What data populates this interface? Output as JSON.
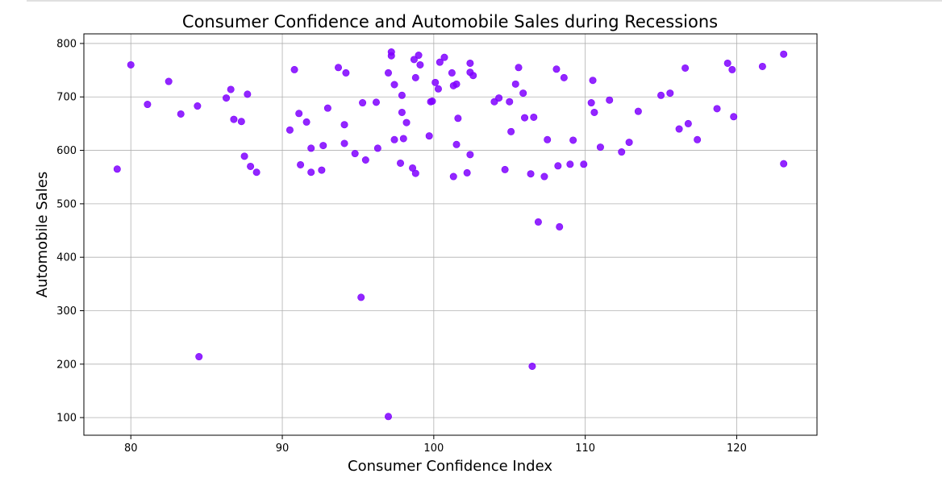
{
  "chart_data": {
    "type": "scatter",
    "title": "Consumer Confidence and Automobile Sales during Recessions",
    "xlabel": "Consumer Confidence Index",
    "ylabel": "Automobile Sales",
    "xlim": [
      76.9,
      125.3
    ],
    "ylim": [
      67,
      818
    ],
    "xticks": [
      80,
      90,
      100,
      110,
      120
    ],
    "yticks": [
      100,
      200,
      300,
      400,
      500,
      600,
      700,
      800
    ],
    "grid": true,
    "marker_color": "#7f00ff",
    "points": [
      [
        79.1,
        565
      ],
      [
        80.0,
        760
      ],
      [
        81.1,
        686
      ],
      [
        82.5,
        729
      ],
      [
        83.3,
        668
      ],
      [
        84.4,
        683
      ],
      [
        84.5,
        214
      ],
      [
        86.3,
        698
      ],
      [
        86.6,
        714
      ],
      [
        86.8,
        658
      ],
      [
        87.3,
        654
      ],
      [
        87.5,
        589
      ],
      [
        87.7,
        705
      ],
      [
        87.9,
        570
      ],
      [
        88.3,
        559
      ],
      [
        90.5,
        638
      ],
      [
        90.8,
        751
      ],
      [
        91.1,
        669
      ],
      [
        91.2,
        573
      ],
      [
        91.6,
        653
      ],
      [
        91.9,
        604
      ],
      [
        91.9,
        559
      ],
      [
        92.6,
        563
      ],
      [
        92.7,
        609
      ],
      [
        93.0,
        679
      ],
      [
        93.7,
        755
      ],
      [
        94.1,
        648
      ],
      [
        94.1,
        613
      ],
      [
        94.2,
        745
      ],
      [
        94.8,
        594
      ],
      [
        95.2,
        325
      ],
      [
        95.3,
        689
      ],
      [
        95.5,
        582
      ],
      [
        96.2,
        690
      ],
      [
        96.3,
        604
      ],
      [
        97.0,
        745
      ],
      [
        97.0,
        102
      ],
      [
        97.2,
        784
      ],
      [
        97.2,
        777
      ],
      [
        97.4,
        723
      ],
      [
        97.4,
        620
      ],
      [
        97.8,
        576
      ],
      [
        97.9,
        703
      ],
      [
        97.9,
        671
      ],
      [
        98.0,
        622
      ],
      [
        98.2,
        652
      ],
      [
        98.6,
        567
      ],
      [
        98.7,
        770
      ],
      [
        98.8,
        736
      ],
      [
        98.8,
        557
      ],
      [
        99.0,
        778
      ],
      [
        99.1,
        760
      ],
      [
        99.7,
        627
      ],
      [
        99.8,
        691
      ],
      [
        99.9,
        692
      ],
      [
        100.1,
        727
      ],
      [
        100.3,
        715
      ],
      [
        100.4,
        765
      ],
      [
        100.7,
        774
      ],
      [
        101.2,
        745
      ],
      [
        101.3,
        721
      ],
      [
        101.3,
        551
      ],
      [
        101.5,
        724
      ],
      [
        101.5,
        611
      ],
      [
        101.6,
        660
      ],
      [
        102.2,
        558
      ],
      [
        102.4,
        763
      ],
      [
        102.4,
        746
      ],
      [
        102.4,
        592
      ],
      [
        102.6,
        740
      ],
      [
        104.0,
        691
      ],
      [
        104.3,
        698
      ],
      [
        104.7,
        564
      ],
      [
        105.0,
        691
      ],
      [
        105.1,
        635
      ],
      [
        105.4,
        724
      ],
      [
        105.6,
        755
      ],
      [
        105.9,
        707
      ],
      [
        106.0,
        661
      ],
      [
        106.4,
        556
      ],
      [
        106.5,
        196
      ],
      [
        106.6,
        662
      ],
      [
        106.9,
        466
      ],
      [
        107.3,
        551
      ],
      [
        107.5,
        620
      ],
      [
        108.1,
        752
      ],
      [
        108.2,
        571
      ],
      [
        108.3,
        457
      ],
      [
        108.6,
        736
      ],
      [
        109.0,
        574
      ],
      [
        109.2,
        619
      ],
      [
        109.9,
        574
      ],
      [
        110.4,
        689
      ],
      [
        110.5,
        731
      ],
      [
        110.6,
        671
      ],
      [
        111.0,
        606
      ],
      [
        111.6,
        694
      ],
      [
        112.4,
        597
      ],
      [
        112.9,
        615
      ],
      [
        113.5,
        673
      ],
      [
        115.0,
        703
      ],
      [
        115.6,
        707
      ],
      [
        116.2,
        640
      ],
      [
        116.6,
        754
      ],
      [
        116.8,
        650
      ],
      [
        117.4,
        620
      ],
      [
        118.7,
        678
      ],
      [
        119.4,
        763
      ],
      [
        119.7,
        751
      ],
      [
        119.8,
        663
      ],
      [
        121.7,
        757
      ],
      [
        123.1,
        780
      ],
      [
        123.1,
        575
      ]
    ]
  }
}
